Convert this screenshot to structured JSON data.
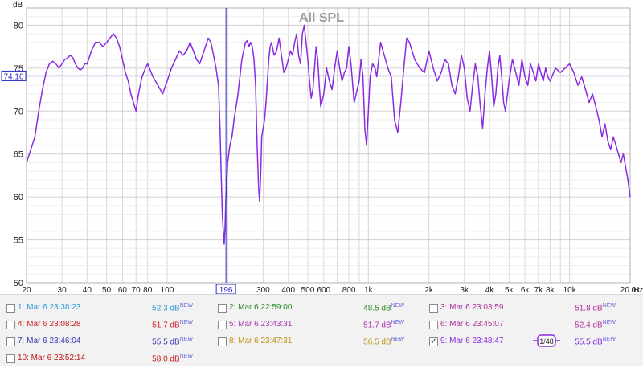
{
  "chart_data": {
    "type": "line",
    "title": "All SPL",
    "ylabel": "dB",
    "xlabel": "Hz",
    "ylim": [
      50,
      82
    ],
    "xlim": [
      20,
      20000
    ],
    "x_scale": "log",
    "grid": true,
    "yticks": [
      "50",
      "55",
      "60",
      "65",
      "70",
      "75",
      "80"
    ],
    "xticks": [
      {
        "v": 20,
        "t": "20"
      },
      {
        "v": 30,
        "t": "30"
      },
      {
        "v": 40,
        "t": "40"
      },
      {
        "v": 50,
        "t": "50"
      },
      {
        "v": 60,
        "t": "60"
      },
      {
        "v": 70,
        "t": "70"
      },
      {
        "v": 80,
        "t": "80"
      },
      {
        "v": 100,
        "t": "100"
      },
      {
        "v": 300,
        "t": "300"
      },
      {
        "v": 400,
        "t": "400"
      },
      {
        "v": 500,
        "t": "500"
      },
      {
        "v": 600,
        "t": "600"
      },
      {
        "v": 800,
        "t": "800"
      },
      {
        "v": 1000,
        "t": "1k"
      },
      {
        "v": 2000,
        "t": "2k"
      },
      {
        "v": 3000,
        "t": "3k"
      },
      {
        "v": 4000,
        "t": "4k"
      },
      {
        "v": 5000,
        "t": "5k"
      },
      {
        "v": 6000,
        "t": "6k"
      },
      {
        "v": 7000,
        "t": "7k"
      },
      {
        "v": 8000,
        "t": "8k"
      },
      {
        "v": 10000,
        "t": "10k"
      },
      {
        "v": 20000,
        "t": "20.0k"
      }
    ],
    "cursor": {
      "x": 196,
      "x_label": "196",
      "y": 74.1,
      "y_label": "74.10"
    },
    "series": [
      {
        "color": "#8a2be2",
        "points": [
          [
            20,
            64
          ],
          [
            21,
            65.5
          ],
          [
            22,
            67
          ],
          [
            23,
            70
          ],
          [
            24,
            72.5
          ],
          [
            25,
            74.5
          ],
          [
            26,
            75.5
          ],
          [
            27,
            75.8
          ],
          [
            28,
            75.5
          ],
          [
            29,
            75
          ],
          [
            30,
            75.5
          ],
          [
            31,
            76
          ],
          [
            32,
            76.2
          ],
          [
            33,
            76.5
          ],
          [
            34,
            76.2
          ],
          [
            35,
            75.5
          ],
          [
            36,
            75
          ],
          [
            37,
            74.8
          ],
          [
            38,
            75
          ],
          [
            39,
            75.5
          ],
          [
            40,
            75.5
          ],
          [
            42,
            77
          ],
          [
            44,
            78
          ],
          [
            46,
            78
          ],
          [
            48,
            77.5
          ],
          [
            50,
            78
          ],
          [
            52,
            78.5
          ],
          [
            54,
            79
          ],
          [
            56,
            78.5
          ],
          [
            58,
            77.5
          ],
          [
            60,
            76
          ],
          [
            62,
            74.5
          ],
          [
            64,
            73.5
          ],
          [
            66,
            72
          ],
          [
            68,
            71
          ],
          [
            70,
            70
          ],
          [
            72,
            72
          ],
          [
            75,
            74
          ],
          [
            78,
            75
          ],
          [
            80,
            75.5
          ],
          [
            85,
            74
          ],
          [
            90,
            73
          ],
          [
            95,
            72
          ],
          [
            100,
            73.5
          ],
          [
            105,
            75
          ],
          [
            110,
            76
          ],
          [
            115,
            77
          ],
          [
            120,
            76.5
          ],
          [
            125,
            77
          ],
          [
            130,
            78
          ],
          [
            135,
            77
          ],
          [
            140,
            76
          ],
          [
            145,
            75.5
          ],
          [
            150,
            76.5
          ],
          [
            155,
            77.5
          ],
          [
            160,
            78.5
          ],
          [
            165,
            78
          ],
          [
            170,
            76.5
          ],
          [
            175,
            75
          ],
          [
            180,
            73
          ],
          [
            183,
            68
          ],
          [
            186,
            62
          ],
          [
            188,
            58
          ],
          [
            190,
            56
          ],
          [
            192,
            54.5
          ],
          [
            194,
            56.5
          ],
          [
            196,
            60
          ],
          [
            200,
            64
          ],
          [
            205,
            66
          ],
          [
            210,
            67
          ],
          [
            215,
            69
          ],
          [
            220,
            70.5
          ],
          [
            225,
            72
          ],
          [
            230,
            74
          ],
          [
            235,
            76
          ],
          [
            240,
            77
          ],
          [
            245,
            78
          ],
          [
            250,
            78.2
          ],
          [
            255,
            77.5
          ],
          [
            260,
            78
          ],
          [
            265,
            77.5
          ],
          [
            270,
            76
          ],
          [
            275,
            73
          ],
          [
            280,
            66
          ],
          [
            285,
            61
          ],
          [
            288,
            59.5
          ],
          [
            292,
            63
          ],
          [
            295,
            67
          ],
          [
            300,
            68
          ],
          [
            305,
            69
          ],
          [
            310,
            71
          ],
          [
            315,
            73.5
          ],
          [
            320,
            76
          ],
          [
            325,
            77.5
          ],
          [
            330,
            78
          ],
          [
            340,
            76.5
          ],
          [
            350,
            77
          ],
          [
            360,
            78.5
          ],
          [
            370,
            76.5
          ],
          [
            380,
            74.5
          ],
          [
            390,
            75
          ],
          [
            400,
            76
          ],
          [
            410,
            77
          ],
          [
            420,
            76.5
          ],
          [
            430,
            78
          ],
          [
            440,
            79
          ],
          [
            450,
            76.5
          ],
          [
            460,
            75.5
          ],
          [
            470,
            79
          ],
          [
            480,
            80
          ],
          [
            490,
            78
          ],
          [
            500,
            76
          ],
          [
            510,
            73.5
          ],
          [
            520,
            71.5
          ],
          [
            530,
            72.5
          ],
          [
            540,
            75
          ],
          [
            550,
            77.5
          ],
          [
            560,
            76
          ],
          [
            570,
            73
          ],
          [
            580,
            70.5
          ],
          [
            600,
            72
          ],
          [
            620,
            75
          ],
          [
            640,
            73.5
          ],
          [
            660,
            72.5
          ],
          [
            680,
            75
          ],
          [
            700,
            77
          ],
          [
            720,
            75
          ],
          [
            740,
            73.5
          ],
          [
            760,
            74.5
          ],
          [
            780,
            75
          ],
          [
            800,
            77.5
          ],
          [
            820,
            75.5
          ],
          [
            850,
            71
          ],
          [
            880,
            72.5
          ],
          [
            900,
            73.5
          ],
          [
            920,
            76
          ],
          [
            940,
            74
          ],
          [
            960,
            68
          ],
          [
            980,
            66
          ],
          [
            1000,
            70
          ],
          [
            1020,
            74
          ],
          [
            1050,
            75.5
          ],
          [
            1080,
            75
          ],
          [
            1100,
            74
          ],
          [
            1150,
            78
          ],
          [
            1200,
            76.5
          ],
          [
            1250,
            75
          ],
          [
            1300,
            74
          ],
          [
            1350,
            69
          ],
          [
            1400,
            67.5
          ],
          [
            1450,
            71
          ],
          [
            1500,
            75
          ],
          [
            1550,
            78.5
          ],
          [
            1600,
            78
          ],
          [
            1700,
            76
          ],
          [
            1800,
            75
          ],
          [
            1900,
            74.5
          ],
          [
            2000,
            77
          ],
          [
            2100,
            75
          ],
          [
            2200,
            73.5
          ],
          [
            2300,
            74.5
          ],
          [
            2400,
            76
          ],
          [
            2500,
            75.5
          ],
          [
            2600,
            73
          ],
          [
            2700,
            72
          ],
          [
            2800,
            74
          ],
          [
            2900,
            76.5
          ],
          [
            3000,
            75
          ],
          [
            3100,
            71.5
          ],
          [
            3200,
            70
          ],
          [
            3300,
            73
          ],
          [
            3400,
            75.5
          ],
          [
            3500,
            74
          ],
          [
            3600,
            70.5
          ],
          [
            3700,
            68
          ],
          [
            3800,
            72
          ],
          [
            3900,
            75
          ],
          [
            4000,
            77
          ],
          [
            4100,
            74
          ],
          [
            4200,
            70.5
          ],
          [
            4300,
            72
          ],
          [
            4400,
            75
          ],
          [
            4500,
            76.5
          ],
          [
            4600,
            74
          ],
          [
            4700,
            71
          ],
          [
            4800,
            70
          ],
          [
            5000,
            73.5
          ],
          [
            5200,
            76
          ],
          [
            5400,
            74.5
          ],
          [
            5600,
            73
          ],
          [
            5800,
            76
          ],
          [
            6000,
            74
          ],
          [
            6200,
            73
          ],
          [
            6400,
            75.5
          ],
          [
            6600,
            74.5
          ],
          [
            6800,
            73.5
          ],
          [
            7000,
            75.5
          ],
          [
            7200,
            74.5
          ],
          [
            7400,
            73.5
          ],
          [
            7600,
            75
          ],
          [
            7800,
            74
          ],
          [
            8000,
            73.5
          ],
          [
            8500,
            75
          ],
          [
            9000,
            74.5
          ],
          [
            9500,
            75
          ],
          [
            10000,
            75.5
          ],
          [
            10500,
            74.5
          ],
          [
            11000,
            73
          ],
          [
            11500,
            74
          ],
          [
            12000,
            72.5
          ],
          [
            12500,
            71
          ],
          [
            13000,
            72
          ],
          [
            13500,
            70.5
          ],
          [
            14000,
            69
          ],
          [
            14500,
            67
          ],
          [
            15000,
            68.5
          ],
          [
            15500,
            66.5
          ],
          [
            16000,
            65.5
          ],
          [
            16500,
            67
          ],
          [
            17000,
            66
          ],
          [
            17500,
            65
          ],
          [
            18000,
            64
          ],
          [
            18500,
            65
          ],
          [
            19000,
            63.5
          ],
          [
            19500,
            62
          ],
          [
            20000,
            60
          ]
        ]
      }
    ]
  },
  "legend": {
    "items": [
      {
        "checked": false,
        "name": "1: Mar 6 23:38:23",
        "value": "52.3 dB",
        "badge": "NEW",
        "color": "#2a9ad6"
      },
      {
        "checked": false,
        "name": "2: Mar 6 22:59:00",
        "value": "48.5 dB",
        "badge": "NEW",
        "color": "#2a8a2a"
      },
      {
        "checked": false,
        "name": "3: Mar 6 23:03:59",
        "value": "51.8 dB",
        "badge": "NEW",
        "color": "#b0309a"
      },
      {
        "checked": false,
        "name": "4: Mar 6 23:08:28",
        "value": "51.7 dB",
        "badge": "NEW",
        "color": "#d02020"
      },
      {
        "checked": false,
        "name": "5: Mar 6 23:43:31",
        "value": "51.7 dB",
        "badge": "NEW",
        "color": "#b030b0"
      },
      {
        "checked": false,
        "name": "6: Mar 6 23:45:07",
        "value": "52.4 dB",
        "badge": "NEW",
        "color": "#b0309a"
      },
      {
        "checked": false,
        "name": "7: Mar 6 23:46:04",
        "value": "55.5 dB",
        "badge": "NEW",
        "color": "#3a3ab8"
      },
      {
        "checked": false,
        "name": "8: Mar 6 23:47:31",
        "value": "56.5 dB",
        "badge": "NEW",
        "color": "#c09018"
      },
      {
        "checked": true,
        "name": "9: Mar 6 23:48:47",
        "value": "55.5 dB",
        "badge": "NEW",
        "color": "#8a2be2",
        "smoothing": "1/48"
      },
      {
        "checked": false,
        "name": "10: Mar 6 23:52:14",
        "value": "58.0 dB",
        "badge": "NEW",
        "color": "#c01818"
      }
    ]
  }
}
